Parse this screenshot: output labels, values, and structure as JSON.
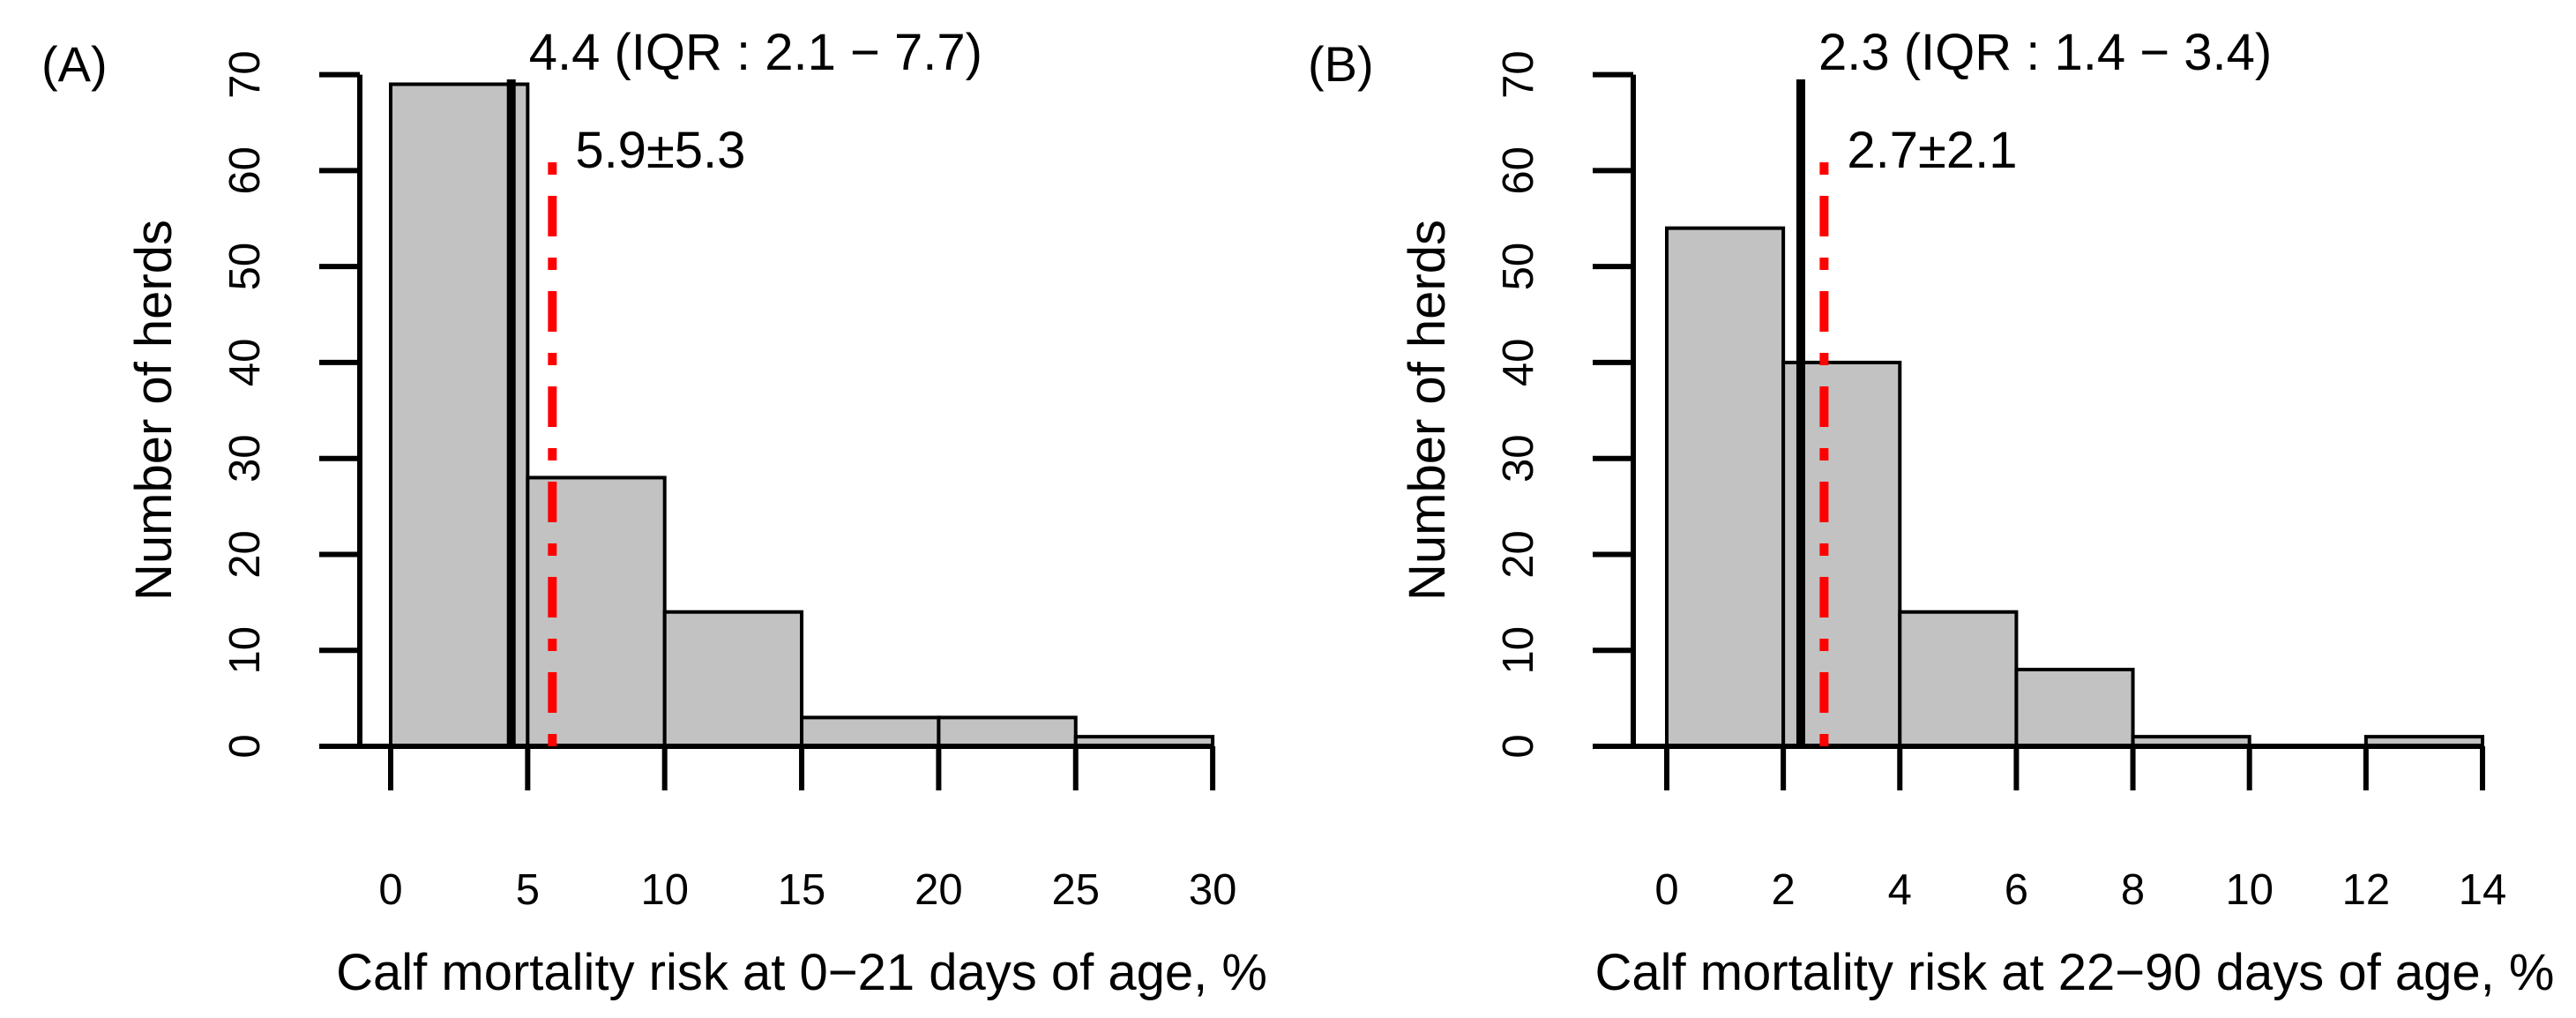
{
  "figure": {
    "background": "#ffffff",
    "bar_fill": "#c2c2c2",
    "bar_stroke": "#000000",
    "axis_color": "#000000",
    "median_line_color": "#000000",
    "mean_line_color": "#ff0000"
  },
  "chart_data": [
    {
      "type": "bar",
      "subtype": "histogram",
      "panel_label": "(A)",
      "xlabel": "Calf mortality risk at 0−21 days of age, %",
      "ylabel": "Number of herds",
      "xlim": [
        0,
        30
      ],
      "ylim": [
        0,
        70
      ],
      "grid": false,
      "bin_edges": [
        0,
        5,
        10,
        15,
        20,
        25,
        30
      ],
      "values": [
        69,
        28,
        14,
        3,
        3,
        1
      ],
      "x_ticks": [
        0,
        5,
        10,
        15,
        20,
        25,
        30
      ],
      "y_ticks": [
        0,
        10,
        20,
        30,
        40,
        50,
        60,
        70
      ],
      "median": 4.4,
      "iqr_low": 2.1,
      "iqr_high": 7.7,
      "median_annotation": "4.4 (IQR : 2.1 − 7.7)",
      "mean": 5.9,
      "sd": 5.3,
      "mean_annotation": "5.9±5.3"
    },
    {
      "type": "bar",
      "subtype": "histogram",
      "panel_label": "(B)",
      "xlabel": "Calf mortality risk at 22−90 days of age, %",
      "ylabel": "Number of herds",
      "xlim": [
        0,
        14
      ],
      "ylim": [
        0,
        70
      ],
      "grid": false,
      "bin_edges": [
        0,
        2,
        4,
        6,
        8,
        10,
        12,
        14
      ],
      "values": [
        54,
        40,
        14,
        8,
        1,
        0,
        1
      ],
      "x_ticks": [
        0,
        2,
        4,
        6,
        8,
        10,
        12,
        14
      ],
      "y_ticks": [
        0,
        10,
        20,
        30,
        40,
        50,
        60,
        70
      ],
      "median": 2.3,
      "iqr_low": 1.4,
      "iqr_high": 3.4,
      "median_annotation": "2.3 (IQR : 1.4 − 3.4)",
      "mean": 2.7,
      "sd": 2.1,
      "mean_annotation": "2.7±2.1"
    }
  ]
}
